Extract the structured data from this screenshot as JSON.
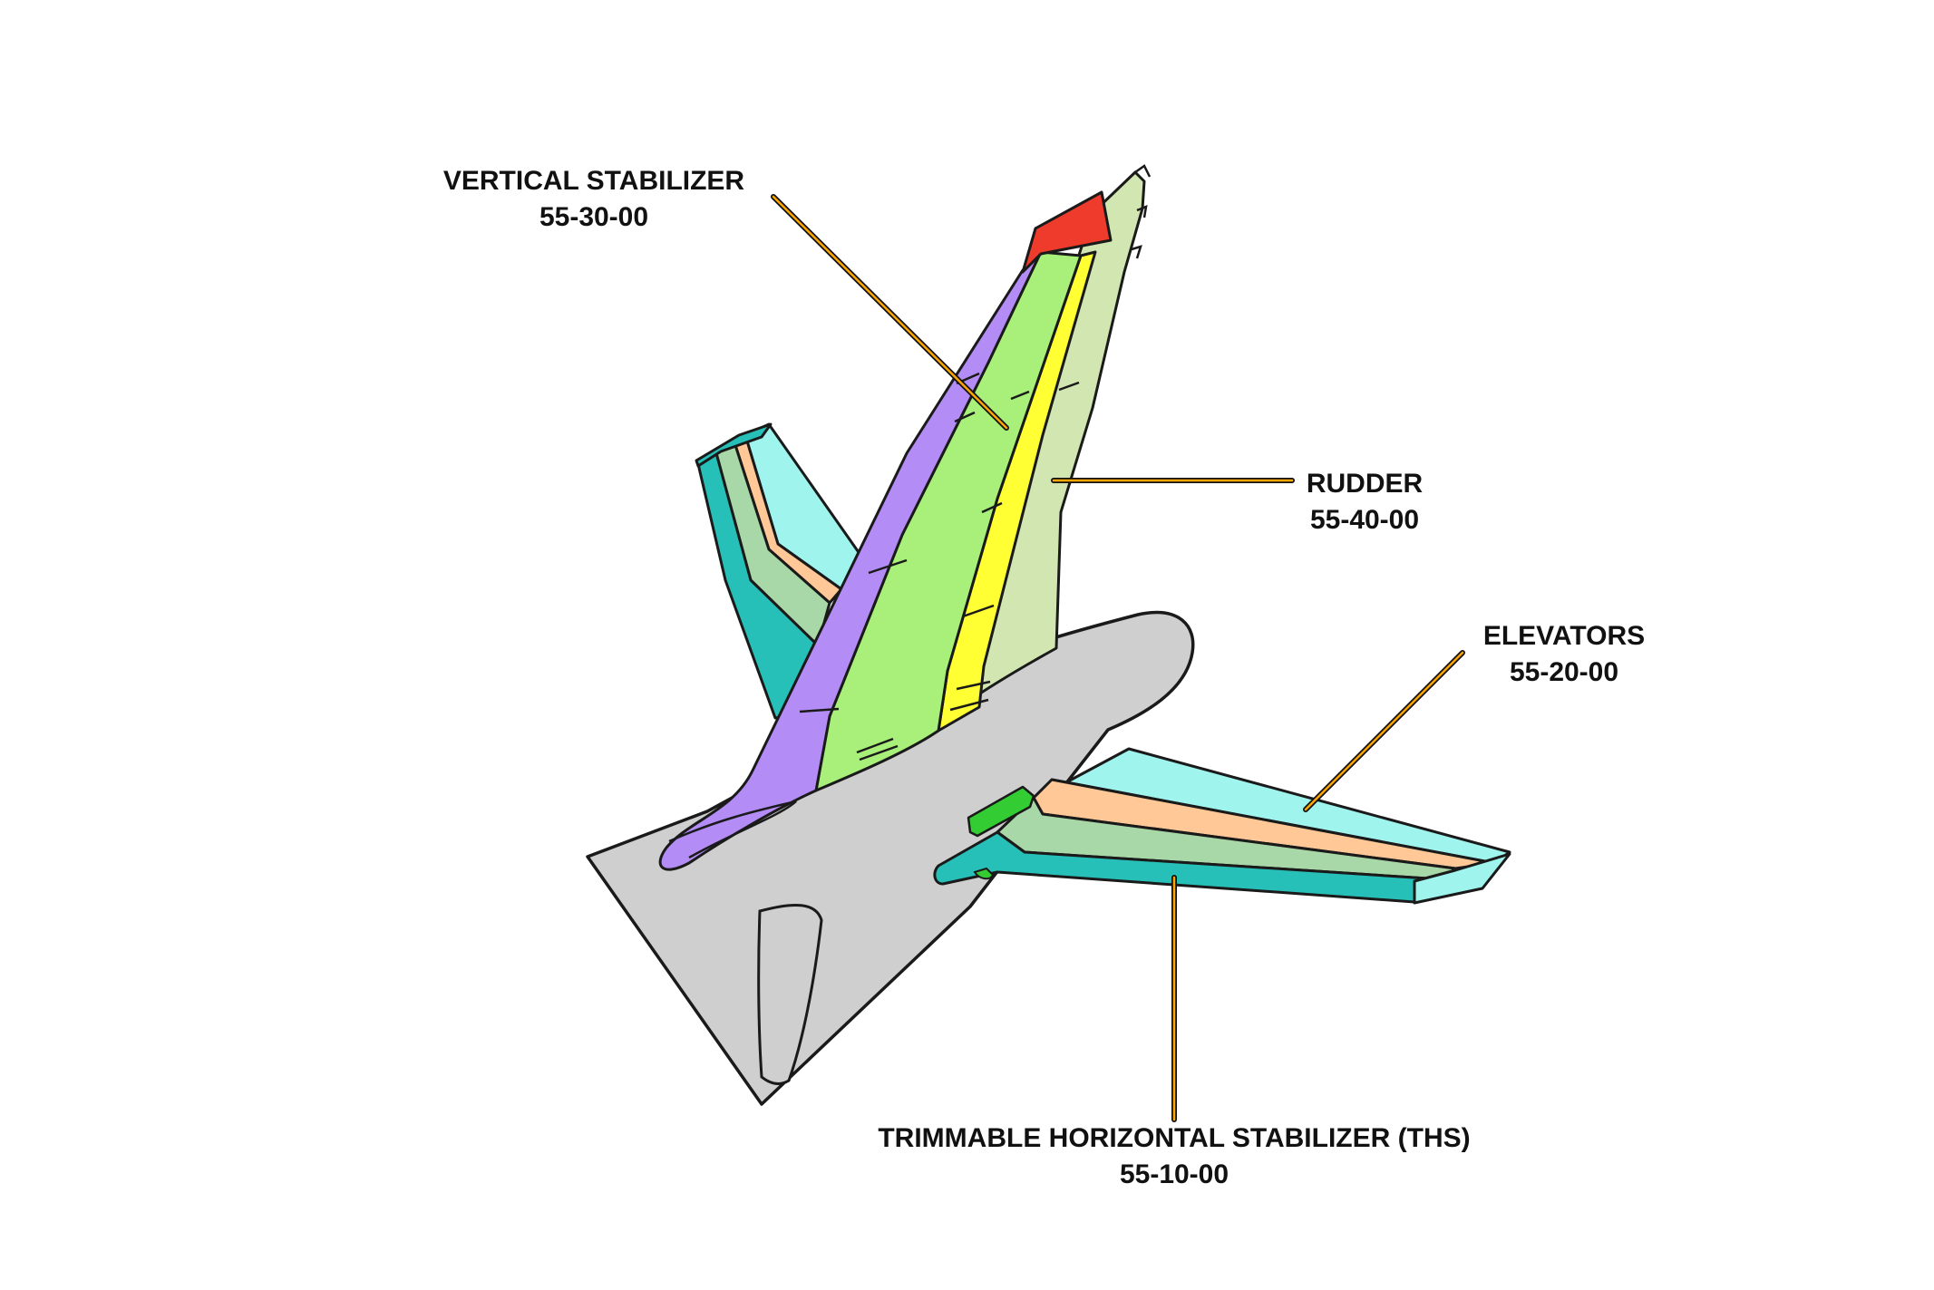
{
  "colors": {
    "outline": "#1a1a1a",
    "fuselage": "#cfcfcf",
    "vertical_stabilizer_leading_edge": "#b38cf5",
    "vertical_stabilizer_main": "#a8f07a",
    "vertical_stabilizer_tip": "#ee3b2c",
    "rudder": "#d2e6b2",
    "rudder_hinge_strip": "#ffff33",
    "ths_leading_edge": "#27c0b8",
    "ths_trailing_band": "#a8d8a8",
    "elevator_band": "#ffc896",
    "elevator": "#9ff4ee",
    "actuator_fairing": "#33cc33",
    "leader_line_outer": "#111111",
    "leader_line_inner": "#ffa500"
  },
  "callouts": {
    "vertical_stabilizer": {
      "name": "VERTICAL STABILIZER",
      "code": "55-30-00"
    },
    "rudder": {
      "name": "RUDDER",
      "code": "55-40-00"
    },
    "elevators": {
      "name": "ELEVATORS",
      "code": "55-20-00"
    },
    "ths": {
      "name": "TRIMMABLE HORIZONTAL STABILIZER (THS)",
      "code": "55-10-00"
    }
  }
}
